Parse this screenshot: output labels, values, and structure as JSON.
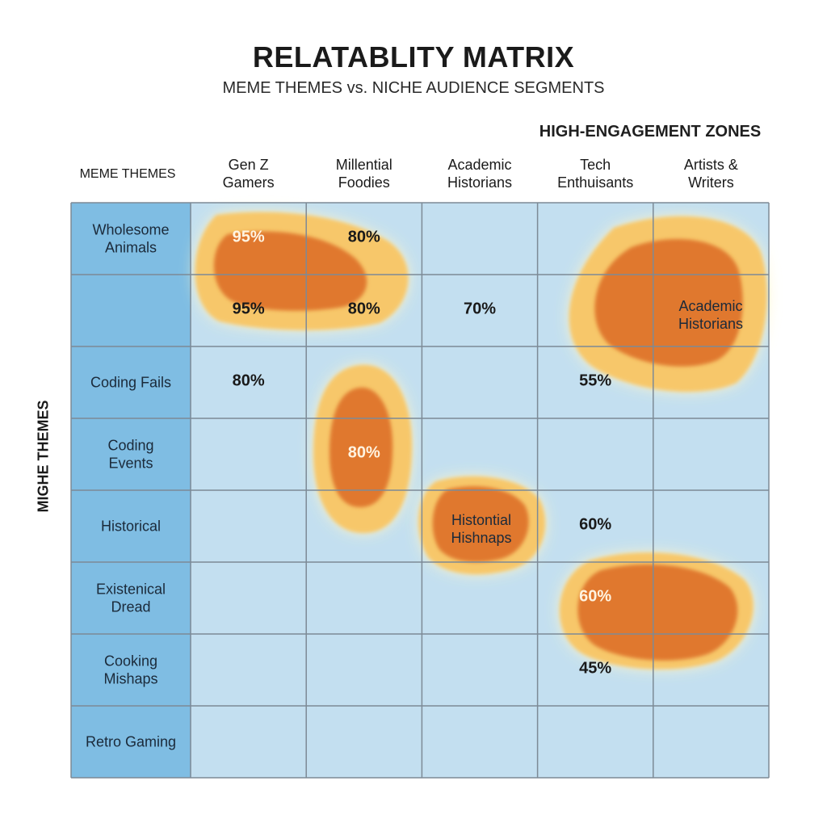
{
  "title": "RELATABLITY MATRIX",
  "subtitle": "MEME THEMES vs. NICHE AUDIENCE SEGMENTS",
  "zones_label": "HIGH-ENGAGEMENT ZONES",
  "row_header_label": "MEME THEMES",
  "y_axis_label": "MIGHE THEMES",
  "colors": {
    "grid_bg": "#c3dff0",
    "row_header_bg": "#7fbde3",
    "grid_line": "#7d8a96",
    "blob_outer": "#f7c76a",
    "blob_inner": "#e0782e",
    "glow": "#fff6c8"
  },
  "chart_data": {
    "type": "heatmap",
    "title": "RELATABLITY MATRIX",
    "subtitle": "MEME THEMES vs. NICHE AUDIENCE SEGMENTS",
    "columns": [
      [
        "Gen Z",
        "Gamers"
      ],
      [
        "Millential",
        "Foodies"
      ],
      [
        "Academic",
        "Historians"
      ],
      [
        "Tech",
        "Enthuisants"
      ],
      [
        "Artists &",
        "Writers"
      ]
    ],
    "rows": [
      [
        "Wholesome",
        "Animals"
      ],
      [],
      [
        "Coding Fails"
      ],
      [
        "Coding",
        "Events"
      ],
      [
        "Historical"
      ],
      [
        "Existenical",
        "Dread"
      ],
      [
        "Cooking",
        "Mishaps"
      ],
      [
        "Retro Gaming"
      ]
    ],
    "cells": [
      {
        "row": 0,
        "col": 0,
        "text": "95%",
        "highlight": true
      },
      {
        "row": 0,
        "col": 1,
        "text": "80%",
        "highlight": false
      },
      {
        "row": 1,
        "col": 0,
        "text": "95%",
        "highlight": false
      },
      {
        "row": 1,
        "col": 1,
        "text": "80%",
        "highlight": false
      },
      {
        "row": 1,
        "col": 2,
        "text": "70%",
        "highlight": false
      },
      {
        "row": 2,
        "col": 0,
        "text": "80%",
        "highlight": false
      },
      {
        "row": 2,
        "col": 3,
        "text": "55%",
        "highlight": false
      },
      {
        "row": 3,
        "col": 1,
        "text": "80%",
        "highlight": true
      },
      {
        "row": 4,
        "col": 3,
        "text": "60%",
        "highlight": false
      },
      {
        "row": 5,
        "col": 3,
        "text": "60%",
        "highlight": true
      },
      {
        "row": 6,
        "col": 3,
        "text": "45%",
        "highlight": false
      }
    ],
    "zones": [
      {
        "name": "wholesome-animals-zone",
        "label": []
      },
      {
        "name": "artists-writers-zone",
        "label": [
          "Academic",
          "Historians"
        ]
      },
      {
        "name": "coding-events-zone",
        "label": []
      },
      {
        "name": "historical-zone",
        "label": [
          "Histontial",
          "Hishnaps"
        ]
      },
      {
        "name": "existential-dread-zone",
        "label": []
      }
    ],
    "legend": "none"
  }
}
